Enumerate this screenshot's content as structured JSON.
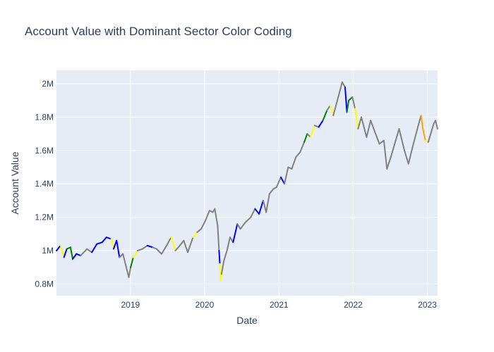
{
  "chart_data": {
    "type": "line",
    "title": "Account Value with Dominant Sector Color Coding",
    "xlabel": "Date",
    "ylabel": "Account Value",
    "x_range": [
      "2018-01-02",
      "2023-02-20"
    ],
    "ylim": [
      730000,
      2080000
    ],
    "x_ticks": [
      {
        "date": "2019-01-01",
        "label": "2019"
      },
      {
        "date": "2020-01-01",
        "label": "2020"
      },
      {
        "date": "2021-01-01",
        "label": "2021"
      },
      {
        "date": "2022-01-01",
        "label": "2022"
      },
      {
        "date": "2023-01-01",
        "label": "2023"
      }
    ],
    "y_ticks": [
      {
        "value": 800000,
        "label": "0.8M"
      },
      {
        "value": 1000000,
        "label": "1M"
      },
      {
        "value": 1200000,
        "label": "1.2M"
      },
      {
        "value": 1400000,
        "label": "1.4M"
      },
      {
        "value": 1600000,
        "label": "1.6M"
      },
      {
        "value": 1800000,
        "label": "1.8M"
      },
      {
        "value": 2000000,
        "label": "2M"
      }
    ],
    "grid": true,
    "legend": "none",
    "background": "#e5ecf6",
    "segment_colors": [
      "blue",
      "gray",
      "yellow",
      "green",
      "orange"
    ],
    "points": [
      {
        "date": "2018-01-02",
        "value": 1000000,
        "color": "blue"
      },
      {
        "date": "2018-01-22",
        "value": 1030000,
        "color": "blue"
      },
      {
        "date": "2018-02-08",
        "value": 960000,
        "color": "yellow"
      },
      {
        "date": "2018-02-22",
        "value": 1010000,
        "color": "blue"
      },
      {
        "date": "2018-03-12",
        "value": 1020000,
        "color": "green"
      },
      {
        "date": "2018-03-23",
        "value": 950000,
        "color": "green"
      },
      {
        "date": "2018-04-10",
        "value": 980000,
        "color": "blue"
      },
      {
        "date": "2018-05-01",
        "value": 970000,
        "color": "blue"
      },
      {
        "date": "2018-06-01",
        "value": 1010000,
        "color": "gray"
      },
      {
        "date": "2018-06-25",
        "value": 990000,
        "color": "gray"
      },
      {
        "date": "2018-07-20",
        "value": 1040000,
        "color": "blue"
      },
      {
        "date": "2018-08-15",
        "value": 1050000,
        "color": "blue"
      },
      {
        "date": "2018-09-05",
        "value": 1080000,
        "color": "blue"
      },
      {
        "date": "2018-09-28",
        "value": 1070000,
        "color": "blue"
      },
      {
        "date": "2018-10-10",
        "value": 1010000,
        "color": "yellow"
      },
      {
        "date": "2018-10-25",
        "value": 1060000,
        "color": "blue"
      },
      {
        "date": "2018-11-08",
        "value": 960000,
        "color": "blue"
      },
      {
        "date": "2018-11-25",
        "value": 980000,
        "color": "gray"
      },
      {
        "date": "2018-12-24",
        "value": 840000,
        "color": "gray"
      },
      {
        "date": "2019-01-02",
        "value": 900000,
        "color": "gray"
      },
      {
        "date": "2019-01-15",
        "value": 960000,
        "color": "green"
      },
      {
        "date": "2019-02-05",
        "value": 1000000,
        "color": "yellow"
      },
      {
        "date": "2019-03-01",
        "value": 1010000,
        "color": "gray"
      },
      {
        "date": "2019-03-25",
        "value": 1030000,
        "color": "gray"
      },
      {
        "date": "2019-04-20",
        "value": 1020000,
        "color": "blue"
      },
      {
        "date": "2019-05-10",
        "value": 1010000,
        "color": "gray"
      },
      {
        "date": "2019-06-03",
        "value": 980000,
        "color": "gray"
      },
      {
        "date": "2019-06-28",
        "value": 1030000,
        "color": "gray"
      },
      {
        "date": "2019-07-20",
        "value": 1080000,
        "color": "gray"
      },
      {
        "date": "2019-08-10",
        "value": 1000000,
        "color": "yellow"
      },
      {
        "date": "2019-09-01",
        "value": 1030000,
        "color": "gray"
      },
      {
        "date": "2019-09-20",
        "value": 1060000,
        "color": "gray"
      },
      {
        "date": "2019-10-10",
        "value": 990000,
        "color": "gray"
      },
      {
        "date": "2019-11-05",
        "value": 1080000,
        "color": "gray"
      },
      {
        "date": "2019-11-25",
        "value": 1110000,
        "color": "yellow"
      },
      {
        "date": "2019-12-15",
        "value": 1130000,
        "color": "gray"
      },
      {
        "date": "2020-01-05",
        "value": 1180000,
        "color": "gray"
      },
      {
        "date": "2020-01-25",
        "value": 1240000,
        "color": "gray"
      },
      {
        "date": "2020-02-10",
        "value": 1230000,
        "color": "gray"
      },
      {
        "date": "2020-02-20",
        "value": 1250000,
        "color": "gray"
      },
      {
        "date": "2020-03-05",
        "value": 1150000,
        "color": "gray"
      },
      {
        "date": "2020-03-12",
        "value": 1000000,
        "color": "gray"
      },
      {
        "date": "2020-03-16",
        "value": 920000,
        "color": "blue"
      },
      {
        "date": "2020-03-20",
        "value": 820000,
        "color": "yellow"
      },
      {
        "date": "2020-03-24",
        "value": 860000,
        "color": "yellow"
      },
      {
        "date": "2020-04-05",
        "value": 940000,
        "color": "gray"
      },
      {
        "date": "2020-04-20",
        "value": 1000000,
        "color": "gray"
      },
      {
        "date": "2020-05-05",
        "value": 1080000,
        "color": "gray"
      },
      {
        "date": "2020-05-20",
        "value": 1050000,
        "color": "gray"
      },
      {
        "date": "2020-06-10",
        "value": 1160000,
        "color": "blue"
      },
      {
        "date": "2020-06-25",
        "value": 1130000,
        "color": "gray"
      },
      {
        "date": "2020-07-20",
        "value": 1170000,
        "color": "gray"
      },
      {
        "date": "2020-08-15",
        "value": 1200000,
        "color": "gray"
      },
      {
        "date": "2020-09-05",
        "value": 1250000,
        "color": "gray"
      },
      {
        "date": "2020-09-25",
        "value": 1220000,
        "color": "blue"
      },
      {
        "date": "2020-10-15",
        "value": 1300000,
        "color": "blue"
      },
      {
        "date": "2020-10-30",
        "value": 1230000,
        "color": "gray"
      },
      {
        "date": "2020-11-15",
        "value": 1340000,
        "color": "gray"
      },
      {
        "date": "2020-12-05",
        "value": 1370000,
        "color": "gray"
      },
      {
        "date": "2020-12-20",
        "value": 1380000,
        "color": "gray"
      },
      {
        "date": "2021-01-10",
        "value": 1440000,
        "color": "gray"
      },
      {
        "date": "2021-01-28",
        "value": 1400000,
        "color": "blue"
      },
      {
        "date": "2021-02-15",
        "value": 1500000,
        "color": "gray"
      },
      {
        "date": "2021-03-05",
        "value": 1490000,
        "color": "gray"
      },
      {
        "date": "2021-03-25",
        "value": 1560000,
        "color": "gray"
      },
      {
        "date": "2021-04-15",
        "value": 1590000,
        "color": "gray"
      },
      {
        "date": "2021-05-05",
        "value": 1650000,
        "color": "gray"
      },
      {
        "date": "2021-05-20",
        "value": 1700000,
        "color": "green"
      },
      {
        "date": "2021-06-05",
        "value": 1680000,
        "color": "gray"
      },
      {
        "date": "2021-06-25",
        "value": 1750000,
        "color": "yellow"
      },
      {
        "date": "2021-07-15",
        "value": 1740000,
        "color": "gray"
      },
      {
        "date": "2021-08-05",
        "value": 1780000,
        "color": "blue"
      },
      {
        "date": "2021-08-25",
        "value": 1840000,
        "color": "green"
      },
      {
        "date": "2021-09-10",
        "value": 1870000,
        "color": "gray"
      },
      {
        "date": "2021-09-25",
        "value": 1810000,
        "color": "yellow"
      },
      {
        "date": "2021-10-15",
        "value": 1900000,
        "color": "gray"
      },
      {
        "date": "2021-11-08",
        "value": 2010000,
        "color": "gray"
      },
      {
        "date": "2021-11-22",
        "value": 1980000,
        "color": "gray"
      },
      {
        "date": "2021-12-01",
        "value": 1830000,
        "color": "blue"
      },
      {
        "date": "2021-12-10",
        "value": 1900000,
        "color": "green"
      },
      {
        "date": "2021-12-28",
        "value": 1920000,
        "color": "green"
      },
      {
        "date": "2022-01-10",
        "value": 1850000,
        "color": "gray"
      },
      {
        "date": "2022-01-25",
        "value": 1730000,
        "color": "yellow"
      },
      {
        "date": "2022-02-10",
        "value": 1800000,
        "color": "gray"
      },
      {
        "date": "2022-03-08",
        "value": 1680000,
        "color": "gray"
      },
      {
        "date": "2022-03-28",
        "value": 1780000,
        "color": "gray"
      },
      {
        "date": "2022-04-15",
        "value": 1720000,
        "color": "gray"
      },
      {
        "date": "2022-05-10",
        "value": 1640000,
        "color": "gray"
      },
      {
        "date": "2022-06-01",
        "value": 1660000,
        "color": "gray"
      },
      {
        "date": "2022-06-16",
        "value": 1490000,
        "color": "gray"
      },
      {
        "date": "2022-07-05",
        "value": 1560000,
        "color": "gray"
      },
      {
        "date": "2022-08-15",
        "value": 1730000,
        "color": "gray"
      },
      {
        "date": "2022-09-10",
        "value": 1600000,
        "color": "gray"
      },
      {
        "date": "2022-09-30",
        "value": 1520000,
        "color": "gray"
      },
      {
        "date": "2022-10-20",
        "value": 1620000,
        "color": "gray"
      },
      {
        "date": "2022-11-15",
        "value": 1740000,
        "color": "gray"
      },
      {
        "date": "2022-12-01",
        "value": 1810000,
        "color": "gray"
      },
      {
        "date": "2022-12-10",
        "value": 1730000,
        "color": "orange"
      },
      {
        "date": "2022-12-22",
        "value": 1660000,
        "color": "orange"
      },
      {
        "date": "2023-01-05",
        "value": 1650000,
        "color": "yellow"
      },
      {
        "date": "2023-01-15",
        "value": 1690000,
        "color": "gray"
      },
      {
        "date": "2023-02-01",
        "value": 1760000,
        "color": "gray"
      },
      {
        "date": "2023-02-10",
        "value": 1780000,
        "color": "gray"
      },
      {
        "date": "2023-02-20",
        "value": 1730000,
        "color": "gray"
      }
    ]
  }
}
